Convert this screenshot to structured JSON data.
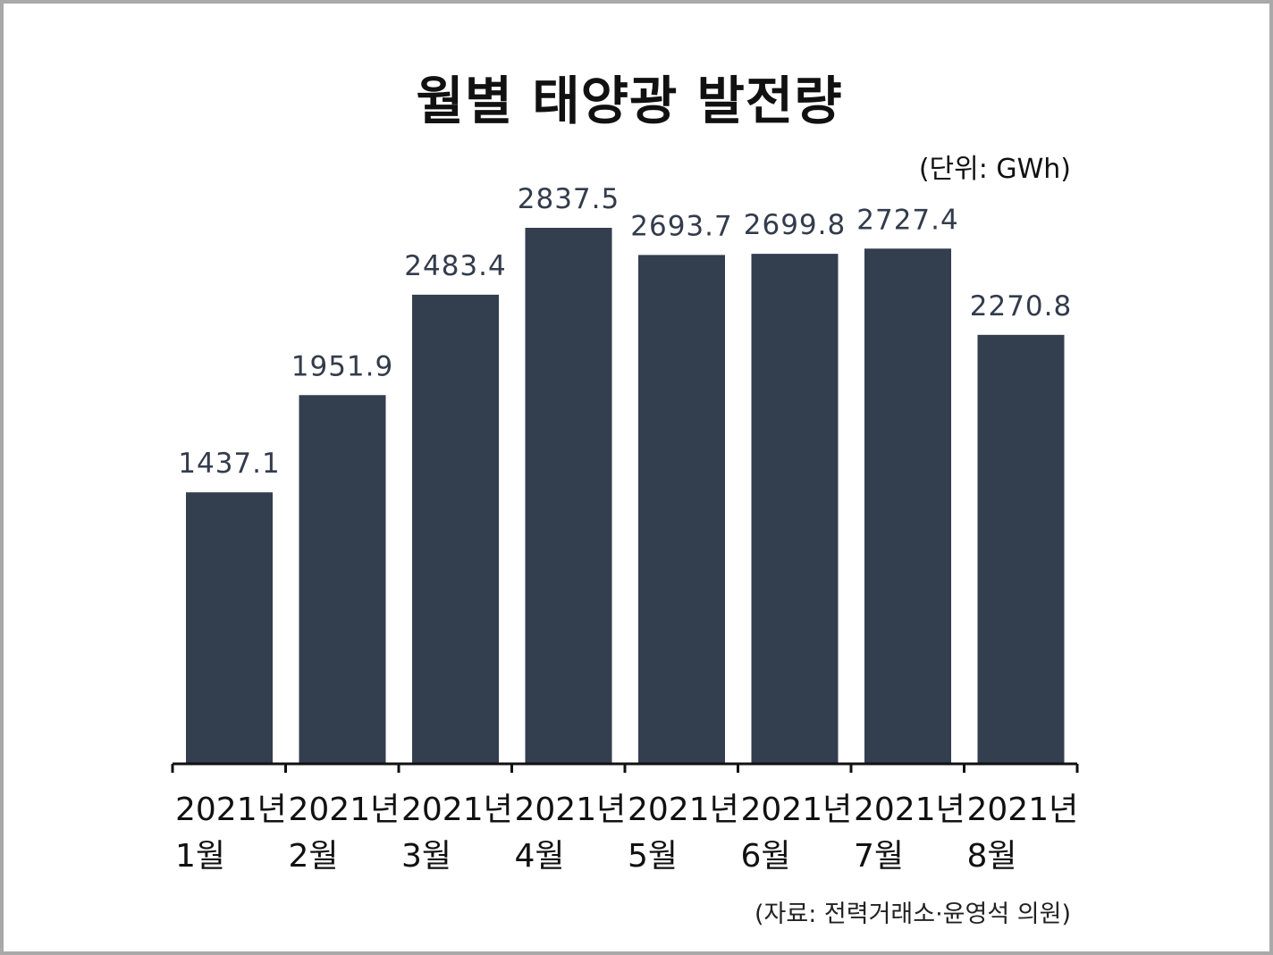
{
  "chart_data": {
    "type": "bar",
    "title": "월별 태양광 발전량",
    "unit_label": "(단위: GWh)",
    "source": "(자료: 전력거래소·윤영석 의원)",
    "categories": [
      [
        "2021년",
        "1월"
      ],
      [
        "2021년",
        "2월"
      ],
      [
        "2021년",
        "3월"
      ],
      [
        "2021년",
        "4월"
      ],
      [
        "2021년",
        "5월"
      ],
      [
        "2021년",
        "6월"
      ],
      [
        "2021년",
        "7월"
      ],
      [
        "2021년",
        "8월"
      ]
    ],
    "values": [
      1437.1,
      1951.9,
      2483.4,
      2837.5,
      2693.7,
      2699.8,
      2727.4,
      2270.8
    ],
    "value_labels": [
      "1437.1",
      "1951.9",
      "2483.4",
      "2837.5",
      "2693.7",
      "2699.8",
      "2727.4",
      "2270.8"
    ],
    "ylim": [
      0,
      2837.5
    ],
    "grid": false,
    "colors": {
      "bar": "#333e4f",
      "axis": "#111111"
    }
  }
}
